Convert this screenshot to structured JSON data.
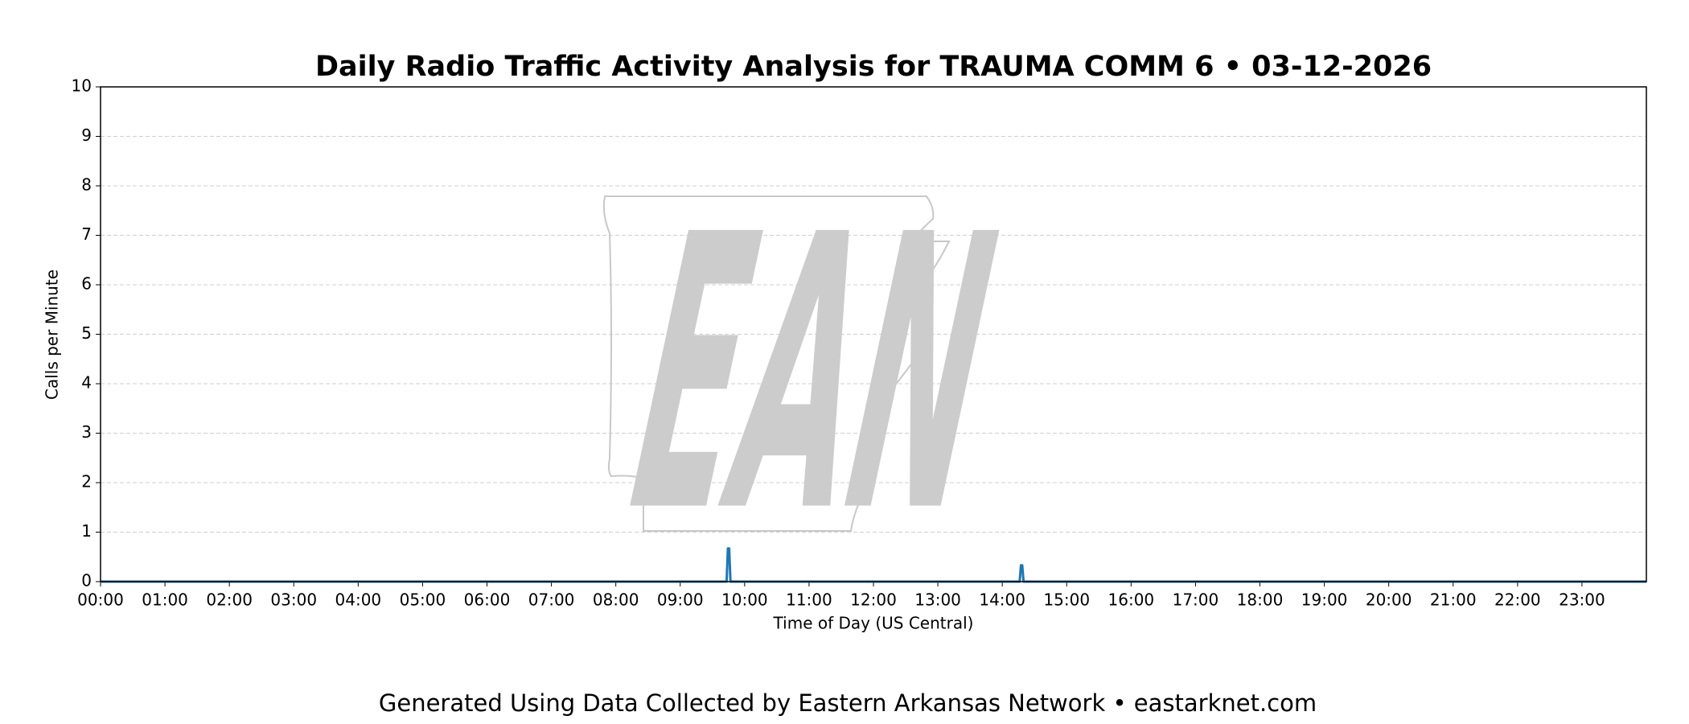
{
  "chart_data": {
    "type": "line",
    "title": "Daily Radio Traffic Activity Analysis for TRAUMA COMM 6 • 03-12-2026",
    "x_label": "Time of Day (US Central)",
    "y_label": "Calls per Minute",
    "footer": "Generated Using Data Collected by Eastern Arkansas Network • eastarknet.com",
    "watermark": "EAN",
    "x": [
      0,
      9.72,
      9.74,
      9.76,
      9.78,
      14.27,
      14.29,
      14.31,
      14.33,
      24
    ],
    "values": [
      0,
      0,
      0.67,
      0.67,
      0,
      0,
      0.33,
      0.33,
      0,
      0
    ],
    "color": "#1f77b4",
    "xlim": [
      0,
      24
    ],
    "xticks": [
      {
        "value": 0,
        "label": "00:00"
      },
      {
        "value": 1,
        "label": "01:00"
      },
      {
        "value": 2,
        "label": "02:00"
      },
      {
        "value": 3,
        "label": "03:00"
      },
      {
        "value": 4,
        "label": "04:00"
      },
      {
        "value": 5,
        "label": "05:00"
      },
      {
        "value": 6,
        "label": "06:00"
      },
      {
        "value": 7,
        "label": "07:00"
      },
      {
        "value": 8,
        "label": "08:00"
      },
      {
        "value": 9,
        "label": "09:00"
      },
      {
        "value": 10,
        "label": "10:00"
      },
      {
        "value": 11,
        "label": "11:00"
      },
      {
        "value": 12,
        "label": "12:00"
      },
      {
        "value": 13,
        "label": "13:00"
      },
      {
        "value": 14,
        "label": "14:00"
      },
      {
        "value": 15,
        "label": "15:00"
      },
      {
        "value": 16,
        "label": "16:00"
      },
      {
        "value": 17,
        "label": "17:00"
      },
      {
        "value": 18,
        "label": "18:00"
      },
      {
        "value": 19,
        "label": "19:00"
      },
      {
        "value": 20,
        "label": "20:00"
      },
      {
        "value": 21,
        "label": "21:00"
      },
      {
        "value": 22,
        "label": "22:00"
      },
      {
        "value": 23,
        "label": "23:00"
      }
    ],
    "ylim": [
      0,
      10
    ],
    "yticks": [
      0,
      1,
      2,
      3,
      4,
      5,
      6,
      7,
      8,
      9,
      10
    ],
    "grid": true
  }
}
